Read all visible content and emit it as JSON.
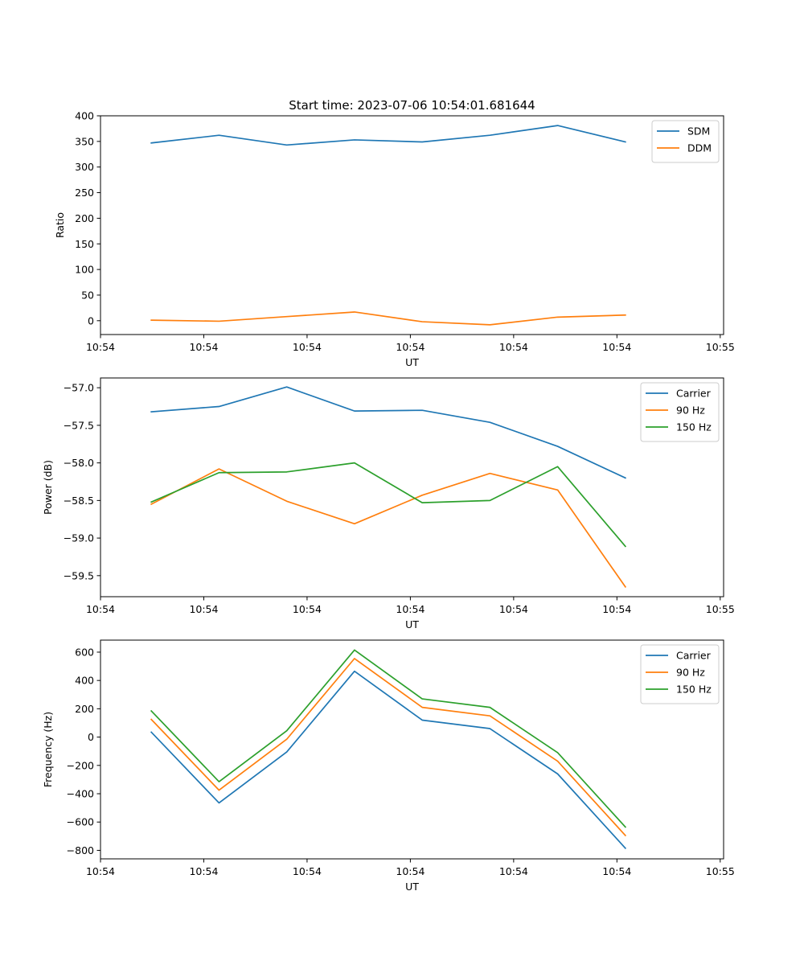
{
  "figure_title": "Start time: 2023-07-06 10:54:01.681644",
  "chart_data": [
    {
      "type": "line",
      "title": "Start time: 2023-07-06 10:54:01.681644",
      "xlabel": "UT",
      "ylabel": "Ratio",
      "x_ticks": [
        "10:54",
        "10:54",
        "10:54",
        "10:54",
        "10:54",
        "10:54",
        "10:55"
      ],
      "y_ticks": [
        "0",
        "50",
        "100",
        "150",
        "200",
        "250",
        "300",
        "350",
        "400"
      ],
      "ylim": [
        -27,
        400
      ],
      "x": [
        1,
        2,
        3,
        4,
        5,
        6,
        7,
        8
      ],
      "xlim": [
        0.25,
        9.45
      ],
      "legend_location": "top-right",
      "series": [
        {
          "name": "SDM",
          "color": "#1f77b4",
          "values": [
            347,
            362,
            343,
            353,
            349,
            362,
            381,
            349
          ]
        },
        {
          "name": "DDM",
          "color": "#ff7f0e",
          "values": [
            1,
            -1,
            8,
            17,
            -2,
            -8,
            7,
            11
          ]
        }
      ]
    },
    {
      "type": "line",
      "title": "",
      "xlabel": "UT",
      "ylabel": "Power (dB)",
      "x_ticks": [
        "10:54",
        "10:54",
        "10:54",
        "10:54",
        "10:54",
        "10:54",
        "10:55"
      ],
      "y_ticks": [
        "−59.5",
        "−59.0",
        "−58.5",
        "−58.0",
        "−57.5",
        "−57.0"
      ],
      "ylim": [
        -59.78,
        -56.87
      ],
      "x": [
        1,
        2,
        3,
        4,
        5,
        6,
        7,
        8
      ],
      "xlim": [
        0.25,
        9.45
      ],
      "legend_location": "top-right",
      "series": [
        {
          "name": "Carrier",
          "color": "#1f77b4",
          "values": [
            -57.32,
            -57.25,
            -56.99,
            -57.31,
            -57.3,
            -57.46,
            -57.78,
            -58.2
          ]
        },
        {
          "name": "90 Hz",
          "color": "#ff7f0e",
          "values": [
            -58.55,
            -58.08,
            -58.51,
            -58.81,
            -58.43,
            -58.14,
            -58.36,
            -59.65
          ]
        },
        {
          "name": "150 Hz",
          "color": "#2ca02c",
          "values": [
            -58.52,
            -58.13,
            -58.12,
            -58.0,
            -58.53,
            -58.5,
            -58.05,
            -59.11
          ]
        }
      ]
    },
    {
      "type": "line",
      "title": "",
      "xlabel": "UT",
      "ylabel": "Frequency (Hz)",
      "x_ticks": [
        "10:54",
        "10:54",
        "10:54",
        "10:54",
        "10:54",
        "10:54",
        "10:55"
      ],
      "y_ticks": [
        "−800",
        "−600",
        "−400",
        "−200",
        "0",
        "200",
        "400",
        "600"
      ],
      "ylim": [
        -860,
        685
      ],
      "x": [
        1,
        2,
        3,
        4,
        5,
        6,
        7,
        8
      ],
      "xlim": [
        0.25,
        9.45
      ],
      "legend_location": "top-right",
      "series": [
        {
          "name": "Carrier",
          "color": "#1f77b4",
          "values": [
            35,
            -465,
            -105,
            465,
            120,
            60,
            -260,
            -785
          ]
        },
        {
          "name": "90 Hz",
          "color": "#ff7f0e",
          "values": [
            125,
            -375,
            -15,
            555,
            210,
            150,
            -170,
            -695
          ]
        },
        {
          "name": "150 Hz",
          "color": "#2ca02c",
          "values": [
            185,
            -315,
            45,
            615,
            270,
            210,
            -110,
            -635
          ]
        }
      ]
    }
  ]
}
